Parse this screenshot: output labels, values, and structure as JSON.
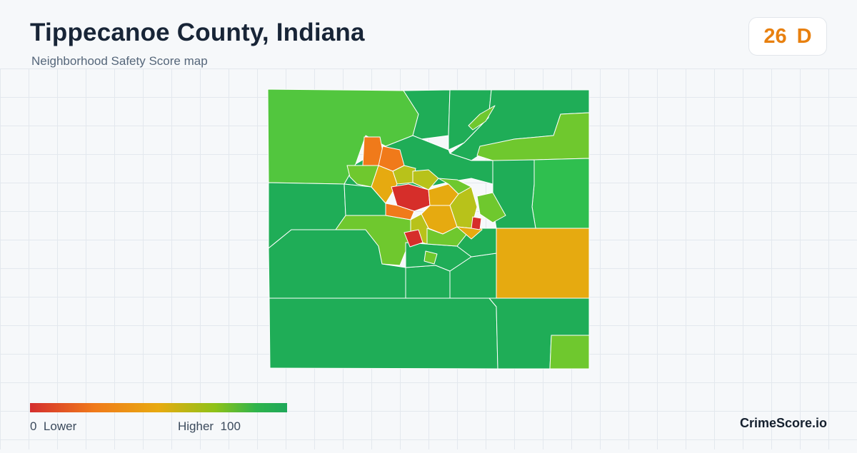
{
  "header": {
    "title": "Tippecanoe County, Indiana",
    "subtitle": "Neighborhood Safety Score map"
  },
  "score": {
    "value": "26",
    "grade": "D",
    "color": "#e8800f"
  },
  "legend": {
    "low_value": "0",
    "low_label": "Lower",
    "high_label": "Higher",
    "high_value": "100",
    "colors": [
      "#d42e2e",
      "#f07a1a",
      "#e8aa10",
      "#8ec218",
      "#2fb44c",
      "#1fa85a"
    ]
  },
  "brand": {
    "name": "CrimeScore.io"
  },
  "map": {
    "region": "Tippecanoe County, Indiana",
    "colors": {
      "safest": "#1fad57",
      "safe": "#2fbf4f",
      "good": "#52c63e",
      "mid_high": "#6fc82e",
      "mid": "#b8c21a",
      "mid_low": "#e6aa10",
      "low": "#f07a1a",
      "lowest": "#d62e2a",
      "border": "#ffffff"
    }
  }
}
